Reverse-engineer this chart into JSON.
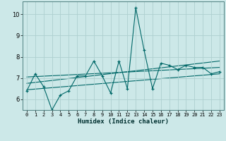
{
  "title": "",
  "xlabel": "Humidex (Indice chaleur)",
  "ylabel": "",
  "background_color": "#cce8e8",
  "grid_color": "#aed0d0",
  "line_color": "#006868",
  "xlim": [
    -0.5,
    23.5
  ],
  "ylim": [
    5.5,
    10.6
  ],
  "yticks": [
    6,
    7,
    8,
    9,
    10
  ],
  "xticks": [
    0,
    1,
    2,
    3,
    4,
    5,
    6,
    7,
    8,
    9,
    10,
    11,
    12,
    13,
    14,
    15,
    16,
    17,
    18,
    19,
    20,
    21,
    22,
    23
  ],
  "main_x": [
    0,
    1,
    2,
    3,
    4,
    5,
    6,
    7,
    8,
    9,
    10,
    11,
    12,
    13,
    14,
    15,
    16,
    17,
    18,
    19,
    20,
    21,
    22,
    23
  ],
  "main_y": [
    6.4,
    7.2,
    6.6,
    5.5,
    6.2,
    6.4,
    7.1,
    7.1,
    7.8,
    7.1,
    6.3,
    7.8,
    6.5,
    10.3,
    8.3,
    6.5,
    7.7,
    7.6,
    7.4,
    7.6,
    7.5,
    7.5,
    7.2,
    7.3
  ],
  "trend1_x": [
    0,
    23
  ],
  "trend1_y": [
    7.05,
    7.5
  ],
  "trend2_x": [
    0,
    23
  ],
  "trend2_y": [
    6.45,
    7.2
  ],
  "trend3_x": [
    0,
    23
  ],
  "trend3_y": [
    6.75,
    7.8
  ]
}
